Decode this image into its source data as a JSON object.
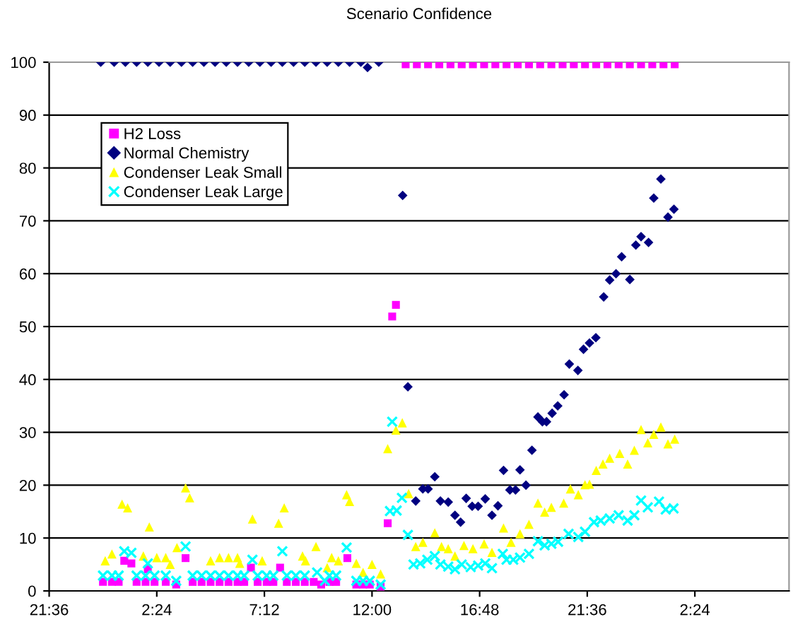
{
  "chart_data": {
    "type": "scatter",
    "title": "Scenario Confidence",
    "legend": "top left",
    "grid": "y",
    "xlim": [
      "2000-01-01T21:36",
      "2000-01-03T06:36"
    ],
    "xticks": [
      {
        "value": "2000-01-01T21:36",
        "label": "21:36"
      },
      {
        "value": "2000-01-02T02:24",
        "label": "2:24"
      },
      {
        "value": "2000-01-02T07:12",
        "label": "7:12"
      },
      {
        "value": "2000-01-02T12:00",
        "label": "12:00"
      },
      {
        "value": "2000-01-02T16:48",
        "label": "16:48"
      },
      {
        "value": "2000-01-02T21:36",
        "label": "21:36"
      },
      {
        "value": "2000-01-03T02:24",
        "label": "2:24"
      }
    ],
    "ylim": [
      0,
      100
    ],
    "yticks": [
      0,
      10,
      20,
      30,
      40,
      50,
      60,
      70,
      80,
      90,
      100
    ],
    "series": [
      {
        "name": "H2 Loss",
        "color": "#ff00ff",
        "marker": "square",
        "x": [
          "2000-01-02T00:00",
          "2000-01-02T00:24",
          "2000-01-02T00:42",
          "2000-01-02T00:57",
          "2000-01-02T01:16",
          "2000-01-02T01:30",
          "2000-01-02T01:54",
          "2000-01-02T02:00",
          "2000-01-02T02:18",
          "2000-01-02T02:48",
          "2000-01-02T03:16",
          "2000-01-02T03:41",
          "2000-01-02T04:00",
          "2000-01-02T04:24",
          "2000-01-02T04:48",
          "2000-01-02T05:12",
          "2000-01-02T05:36",
          "2000-01-02T06:00",
          "2000-01-02T06:18",
          "2000-01-02T06:36",
          "2000-01-02T06:54",
          "2000-01-02T07:18",
          "2000-01-02T07:36",
          "2000-01-02T07:54",
          "2000-01-02T08:12",
          "2000-01-02T08:36",
          "2000-01-02T09:00",
          "2000-01-02T09:24",
          "2000-01-02T09:44",
          "2000-01-02T10:06",
          "2000-01-02T10:24",
          "2000-01-02T10:54",
          "2000-01-02T11:18",
          "2000-01-02T11:36",
          "2000-01-02T11:54",
          "2000-01-02T12:23",
          "2000-01-02T12:42",
          "2000-01-02T12:54",
          "2000-01-02T13:04",
          "2000-01-02T13:30",
          "2000-01-02T14:00",
          "2000-01-02T14:30",
          "2000-01-02T15:00",
          "2000-01-02T15:30",
          "2000-01-02T16:00",
          "2000-01-02T16:30",
          "2000-01-02T17:00",
          "2000-01-02T17:30",
          "2000-01-02T18:00",
          "2000-01-02T18:30",
          "2000-01-02T19:00",
          "2000-01-02T19:30",
          "2000-01-02T20:00",
          "2000-01-02T20:30",
          "2000-01-02T21:00",
          "2000-01-02T21:30",
          "2000-01-02T22:00",
          "2000-01-02T22:30",
          "2000-01-02T23:00",
          "2000-01-02T23:30",
          "2000-01-03T00:00",
          "2000-01-03T00:30",
          "2000-01-03T01:00",
          "2000-01-03T01:30"
        ],
        "values": [
          1.7,
          1.7,
          1.7,
          5.7,
          5.2,
          1.7,
          1.7,
          4.1,
          1.7,
          1.7,
          1.2,
          6.2,
          1.7,
          1.7,
          1.7,
          1.7,
          1.7,
          1.7,
          1.7,
          4.4,
          1.7,
          1.7,
          1.7,
          4.4,
          1.7,
          1.7,
          1.7,
          1.7,
          1.2,
          1.7,
          1.7,
          6.2,
          1.2,
          1.2,
          1.2,
          0.8,
          12.8,
          51.9,
          54.1,
          99.6,
          99.6,
          99.6,
          99.6,
          99.6,
          99.6,
          99.6,
          99.6,
          99.6,
          99.6,
          99.6,
          99.6,
          99.6,
          99.6,
          99.6,
          99.6,
          99.6,
          99.6,
          99.6,
          99.6,
          99.6,
          99.6,
          99.6,
          99.6,
          99.6
        ]
      },
      {
        "name": "Normal Chemistry",
        "color": "#000080",
        "marker": "diamond",
        "x": [
          "2000-01-01T23:54",
          "2000-01-02T00:30",
          "2000-01-02T01:00",
          "2000-01-02T01:30",
          "2000-01-02T02:00",
          "2000-01-02T02:30",
          "2000-01-02T03:00",
          "2000-01-02T03:30",
          "2000-01-02T04:00",
          "2000-01-02T04:30",
          "2000-01-02T05:00",
          "2000-01-02T05:30",
          "2000-01-02T06:00",
          "2000-01-02T06:30",
          "2000-01-02T07:00",
          "2000-01-02T07:30",
          "2000-01-02T08:00",
          "2000-01-02T08:30",
          "2000-01-02T09:00",
          "2000-01-02T09:30",
          "2000-01-02T10:00",
          "2000-01-02T10:30",
          "2000-01-02T11:00",
          "2000-01-02T11:30",
          "2000-01-02T11:48",
          "2000-01-02T12:18",
          "2000-01-02T13:22",
          "2000-01-02T13:36",
          "2000-01-02T13:57",
          "2000-01-02T14:16",
          "2000-01-02T14:30",
          "2000-01-02T14:48",
          "2000-01-02T15:03",
          "2000-01-02T15:24",
          "2000-01-02T15:42",
          "2000-01-02T15:57",
          "2000-01-02T16:12",
          "2000-01-02T16:28",
          "2000-01-02T16:44",
          "2000-01-02T17:03",
          "2000-01-02T17:21",
          "2000-01-02T17:37",
          "2000-01-02T17:52",
          "2000-01-02T18:09",
          "2000-01-02T18:24",
          "2000-01-02T18:36",
          "2000-01-02T18:52",
          "2000-01-02T19:08",
          "2000-01-02T19:24",
          "2000-01-02T19:36",
          "2000-01-02T19:47",
          "2000-01-02T20:02",
          "2000-01-02T20:17",
          "2000-01-02T20:34",
          "2000-01-02T20:48",
          "2000-01-02T21:11",
          "2000-01-02T21:26",
          "2000-01-02T21:42",
          "2000-01-02T21:59",
          "2000-01-02T22:20",
          "2000-01-02T22:36",
          "2000-01-02T22:53",
          "2000-01-02T23:08",
          "2000-01-02T23:30",
          "2000-01-02T23:46",
          "2000-01-03T00:00",
          "2000-01-03T00:20",
          "2000-01-03T00:34",
          "2000-01-03T00:53",
          "2000-01-03T01:12",
          "2000-01-03T01:28"
        ],
        "values": [
          100,
          100,
          100,
          100,
          100,
          100,
          100,
          100,
          100,
          100,
          100,
          100,
          100,
          100,
          100,
          100,
          100,
          100,
          100,
          100,
          100,
          100,
          100,
          100,
          99,
          100,
          74.8,
          38.6,
          17.0,
          19.3,
          19.3,
          21.6,
          17.0,
          16.8,
          14.3,
          13.0,
          17.5,
          16.0,
          16.0,
          17.4,
          14.3,
          16.1,
          22.8,
          19.1,
          19.1,
          22.9,
          20.0,
          26.6,
          32.9,
          32.0,
          32.0,
          33.6,
          35.0,
          37.1,
          42.9,
          41.7,
          45.7,
          46.9,
          47.9,
          55.6,
          58.8,
          60.0,
          63.2,
          58.9,
          65.4,
          67.0,
          65.9,
          74.3,
          77.9,
          70.7,
          72.2
        ]
      },
      {
        "name": "Condenser Leak Small",
        "color": "#ffff00",
        "marker": "triangle",
        "x": [
          "2000-01-02T00:06",
          "2000-01-02T00:24",
          "2000-01-02T00:51",
          "2000-01-02T01:06",
          "2000-01-02T01:48",
          "2000-01-02T02:04",
          "2000-01-02T02:24",
          "2000-01-02T02:48",
          "2000-01-02T03:00",
          "2000-01-02T03:18",
          "2000-01-02T03:41",
          "2000-01-02T03:52",
          "2000-01-02T04:48",
          "2000-01-02T05:12",
          "2000-01-02T05:36",
          "2000-01-02T06:00",
          "2000-01-02T06:06",
          "2000-01-02T06:40",
          "2000-01-02T07:06",
          "2000-01-02T07:50",
          "2000-01-02T08:05",
          "2000-01-02T08:54",
          "2000-01-02T09:02",
          "2000-01-02T09:30",
          "2000-01-02T10:00",
          "2000-01-02T10:12",
          "2000-01-02T10:30",
          "2000-01-02T10:52",
          "2000-01-02T11:00",
          "2000-01-02T11:18",
          "2000-01-02T11:36",
          "2000-01-02T12:00",
          "2000-01-02T12:23",
          "2000-01-02T12:42",
          "2000-01-02T13:04",
          "2000-01-02T13:21",
          "2000-01-02T13:38",
          "2000-01-02T13:57",
          "2000-01-02T14:16",
          "2000-01-02T14:48",
          "2000-01-02T15:06",
          "2000-01-02T15:24",
          "2000-01-02T15:42",
          "2000-01-02T16:06",
          "2000-01-02T16:30",
          "2000-01-02T17:00",
          "2000-01-02T17:21",
          "2000-01-02T17:52",
          "2000-01-02T18:12",
          "2000-01-02T18:36",
          "2000-01-02T19:00",
          "2000-01-02T19:24",
          "2000-01-02T19:42",
          "2000-01-02T20:00",
          "2000-01-02T20:33",
          "2000-01-02T20:51",
          "2000-01-02T21:12",
          "2000-01-02T21:30",
          "2000-01-02T21:42",
          "2000-01-02T22:00",
          "2000-01-02T22:18",
          "2000-01-02T22:36",
          "2000-01-02T23:03",
          "2000-01-02T23:24",
          "2000-01-02T23:42",
          "2000-01-03T00:00",
          "2000-01-03T00:18",
          "2000-01-03T00:34",
          "2000-01-03T00:53",
          "2000-01-03T01:12",
          "2000-01-03T01:30"
        ],
        "values": [
          5.7,
          7.0,
          16.4,
          15.7,
          6.6,
          12.1,
          6.3,
          6.3,
          5.0,
          8.2,
          19.5,
          17.6,
          5.7,
          6.3,
          6.3,
          6.3,
          5.2,
          13.6,
          5.7,
          12.8,
          15.7,
          6.6,
          5.7,
          8.4,
          4.4,
          6.3,
          5.7,
          18.2,
          16.9,
          5.2,
          3.5,
          5.0,
          3.2,
          26.9,
          30.4,
          31.8,
          18.4,
          8.4,
          9.2,
          11.0,
          8.4,
          8.0,
          6.6,
          8.6,
          8.0,
          8.9,
          7.3,
          11.9,
          9.2,
          10.8,
          12.6,
          16.6,
          14.9,
          15.8,
          16.6,
          19.3,
          18.2,
          20.1,
          20.2,
          22.8,
          24.0,
          25.1,
          26.0,
          24.0,
          26.6,
          30.5,
          28.0,
          29.6,
          31.0,
          27.8,
          28.7
        ]
      },
      {
        "name": "Condenser Leak Large",
        "color": "#00ffff",
        "marker": "cross",
        "x": [
          "2000-01-02T00:00",
          "2000-01-02T00:24",
          "2000-01-02T00:42",
          "2000-01-02T00:57",
          "2000-01-02T01:16",
          "2000-01-02T01:30",
          "2000-01-02T01:54",
          "2000-01-02T02:00",
          "2000-01-02T02:18",
          "2000-01-02T02:48",
          "2000-01-02T03:16",
          "2000-01-02T03:41",
          "2000-01-02T04:00",
          "2000-01-02T04:24",
          "2000-01-02T04:48",
          "2000-01-02T05:12",
          "2000-01-02T05:36",
          "2000-01-02T06:00",
          "2000-01-02T06:18",
          "2000-01-02T06:40",
          "2000-01-02T06:54",
          "2000-01-02T07:18",
          "2000-01-02T07:36",
          "2000-01-02T08:00",
          "2000-01-02T08:12",
          "2000-01-02T08:36",
          "2000-01-02T09:00",
          "2000-01-02T09:33",
          "2000-01-02T09:54",
          "2000-01-02T10:06",
          "2000-01-02T10:24",
          "2000-01-02T10:52",
          "2000-01-02T11:18",
          "2000-01-02T11:36",
          "2000-01-02T11:54",
          "2000-01-02T12:23",
          "2000-01-02T12:48",
          "2000-01-02T12:54",
          "2000-01-02T13:06",
          "2000-01-02T13:20",
          "2000-01-02T13:36",
          "2000-01-02T13:51",
          "2000-01-02T14:09",
          "2000-01-02T14:28",
          "2000-01-02T14:48",
          "2000-01-02T15:03",
          "2000-01-02T15:24",
          "2000-01-02T15:42",
          "2000-01-02T16:00",
          "2000-01-02T16:24",
          "2000-01-02T16:44",
          "2000-01-02T17:03",
          "2000-01-02T17:21",
          "2000-01-02T17:50",
          "2000-01-02T18:00",
          "2000-01-02T18:18",
          "2000-01-02T18:36",
          "2000-01-02T19:00",
          "2000-01-02T19:24",
          "2000-01-02T19:42",
          "2000-01-02T20:00",
          "2000-01-02T20:18",
          "2000-01-02T20:46",
          "2000-01-02T21:12",
          "2000-01-02T21:30",
          "2000-01-02T21:54",
          "2000-01-02T22:12",
          "2000-01-02T22:36",
          "2000-01-02T23:00",
          "2000-01-02T23:24",
          "2000-01-02T23:42",
          "2000-01-03T00:00",
          "2000-01-03T00:18",
          "2000-01-03T00:48",
          "2000-01-03T01:06",
          "2000-01-03T01:27"
        ],
        "values": [
          2.9,
          2.9,
          2.9,
          7.5,
          7.2,
          2.9,
          2.9,
          5.2,
          2.9,
          2.9,
          1.9,
          8.4,
          2.9,
          2.9,
          2.9,
          2.9,
          2.9,
          2.9,
          2.9,
          5.9,
          2.9,
          2.9,
          2.9,
          7.5,
          2.9,
          2.9,
          2.9,
          3.5,
          1.9,
          2.9,
          2.9,
          8.2,
          1.9,
          1.9,
          1.9,
          1.2,
          15.1,
          32.0,
          15.2,
          17.6,
          10.6,
          5.0,
          5.2,
          5.9,
          6.6,
          5.0,
          4.6,
          4.1,
          5.0,
          4.5,
          4.8,
          5.2,
          4.3,
          7.0,
          5.9,
          5.9,
          6.3,
          7.0,
          9.4,
          8.6,
          8.9,
          9.3,
          10.8,
          10.2,
          11.2,
          13.0,
          13.3,
          13.7,
          14.3,
          13.3,
          14.3,
          17.1,
          15.8,
          16.9,
          15.4,
          15.6
        ]
      }
    ]
  }
}
